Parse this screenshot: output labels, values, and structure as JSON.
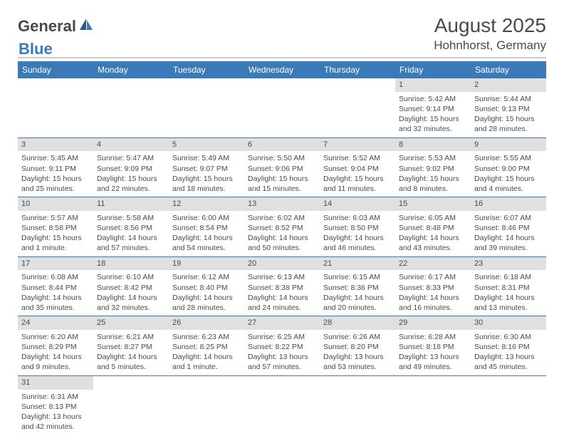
{
  "brand": {
    "part1": "General",
    "part2": "Blue"
  },
  "title": "August 2025",
  "location": "Hohnhorst, Germany",
  "weekdays": [
    "Sunday",
    "Monday",
    "Tuesday",
    "Wednesday",
    "Thursday",
    "Friday",
    "Saturday"
  ],
  "colors": {
    "header_bar": "#3b7ab8",
    "daynum_bg": "#e0e0e0",
    "logo_blue": "#3b7ab8",
    "logo_darkblue": "#2a5a8a",
    "text": "#4a4a4a",
    "border": "#3b7ab8"
  },
  "weeks": [
    [
      null,
      null,
      null,
      null,
      null,
      {
        "n": "1",
        "sr": "5:42 AM",
        "ss": "9:14 PM",
        "dl": "15 hours and 32 minutes."
      },
      {
        "n": "2",
        "sr": "5:44 AM",
        "ss": "9:13 PM",
        "dl": "15 hours and 28 minutes."
      }
    ],
    [
      {
        "n": "3",
        "sr": "5:45 AM",
        "ss": "9:11 PM",
        "dl": "15 hours and 25 minutes."
      },
      {
        "n": "4",
        "sr": "5:47 AM",
        "ss": "9:09 PM",
        "dl": "15 hours and 22 minutes."
      },
      {
        "n": "5",
        "sr": "5:49 AM",
        "ss": "9:07 PM",
        "dl": "15 hours and 18 minutes."
      },
      {
        "n": "6",
        "sr": "5:50 AM",
        "ss": "9:06 PM",
        "dl": "15 hours and 15 minutes."
      },
      {
        "n": "7",
        "sr": "5:52 AM",
        "ss": "9:04 PM",
        "dl": "15 hours and 11 minutes."
      },
      {
        "n": "8",
        "sr": "5:53 AM",
        "ss": "9:02 PM",
        "dl": "15 hours and 8 minutes."
      },
      {
        "n": "9",
        "sr": "5:55 AM",
        "ss": "9:00 PM",
        "dl": "15 hours and 4 minutes."
      }
    ],
    [
      {
        "n": "10",
        "sr": "5:57 AM",
        "ss": "8:58 PM",
        "dl": "15 hours and 1 minute."
      },
      {
        "n": "11",
        "sr": "5:58 AM",
        "ss": "8:56 PM",
        "dl": "14 hours and 57 minutes."
      },
      {
        "n": "12",
        "sr": "6:00 AM",
        "ss": "8:54 PM",
        "dl": "14 hours and 54 minutes."
      },
      {
        "n": "13",
        "sr": "6:02 AM",
        "ss": "8:52 PM",
        "dl": "14 hours and 50 minutes."
      },
      {
        "n": "14",
        "sr": "6:03 AM",
        "ss": "8:50 PM",
        "dl": "14 hours and 46 minutes."
      },
      {
        "n": "15",
        "sr": "6:05 AM",
        "ss": "8:48 PM",
        "dl": "14 hours and 43 minutes."
      },
      {
        "n": "16",
        "sr": "6:07 AM",
        "ss": "8:46 PM",
        "dl": "14 hours and 39 minutes."
      }
    ],
    [
      {
        "n": "17",
        "sr": "6:08 AM",
        "ss": "8:44 PM",
        "dl": "14 hours and 35 minutes."
      },
      {
        "n": "18",
        "sr": "6:10 AM",
        "ss": "8:42 PM",
        "dl": "14 hours and 32 minutes."
      },
      {
        "n": "19",
        "sr": "6:12 AM",
        "ss": "8:40 PM",
        "dl": "14 hours and 28 minutes."
      },
      {
        "n": "20",
        "sr": "6:13 AM",
        "ss": "8:38 PM",
        "dl": "14 hours and 24 minutes."
      },
      {
        "n": "21",
        "sr": "6:15 AM",
        "ss": "8:36 PM",
        "dl": "14 hours and 20 minutes."
      },
      {
        "n": "22",
        "sr": "6:17 AM",
        "ss": "8:33 PM",
        "dl": "14 hours and 16 minutes."
      },
      {
        "n": "23",
        "sr": "6:18 AM",
        "ss": "8:31 PM",
        "dl": "14 hours and 13 minutes."
      }
    ],
    [
      {
        "n": "24",
        "sr": "6:20 AM",
        "ss": "8:29 PM",
        "dl": "14 hours and 9 minutes."
      },
      {
        "n": "25",
        "sr": "6:21 AM",
        "ss": "8:27 PM",
        "dl": "14 hours and 5 minutes."
      },
      {
        "n": "26",
        "sr": "6:23 AM",
        "ss": "8:25 PM",
        "dl": "14 hours and 1 minute."
      },
      {
        "n": "27",
        "sr": "6:25 AM",
        "ss": "8:22 PM",
        "dl": "13 hours and 57 minutes."
      },
      {
        "n": "28",
        "sr": "6:26 AM",
        "ss": "8:20 PM",
        "dl": "13 hours and 53 minutes."
      },
      {
        "n": "29",
        "sr": "6:28 AM",
        "ss": "8:18 PM",
        "dl": "13 hours and 49 minutes."
      },
      {
        "n": "30",
        "sr": "6:30 AM",
        "ss": "8:16 PM",
        "dl": "13 hours and 45 minutes."
      }
    ],
    [
      {
        "n": "31",
        "sr": "6:31 AM",
        "ss": "8:13 PM",
        "dl": "13 hours and 42 minutes."
      },
      null,
      null,
      null,
      null,
      null,
      null
    ]
  ],
  "labels": {
    "sunrise": "Sunrise: ",
    "sunset": "Sunset: ",
    "daylight": "Daylight: "
  }
}
